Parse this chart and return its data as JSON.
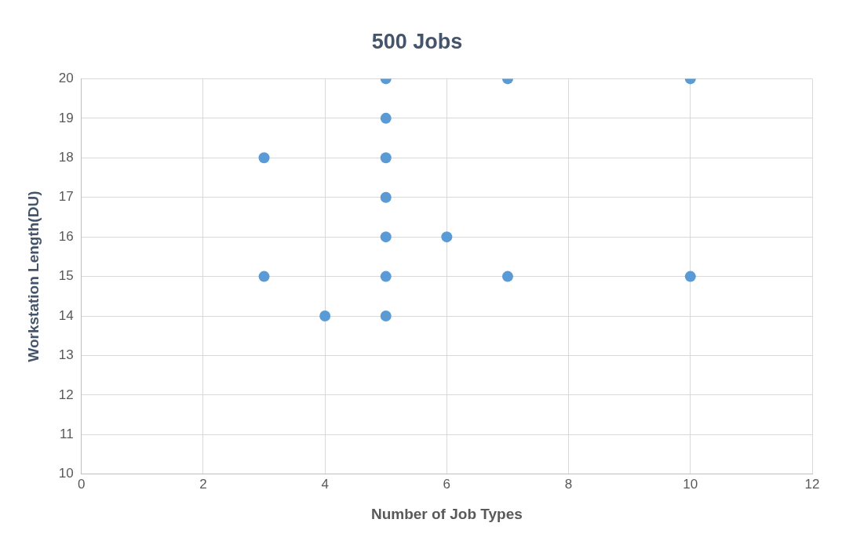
{
  "chart_data": {
    "type": "scatter",
    "title": "500 Jobs",
    "xlabel": "Number of Job Types",
    "ylabel": "Workstation Length(DU)",
    "x": [
      5,
      7,
      10,
      5,
      3,
      5,
      5,
      5,
      6,
      3,
      5,
      7,
      10,
      4,
      5
    ],
    "values": [
      20,
      20,
      20,
      19,
      18,
      18,
      17,
      16,
      16,
      15,
      15,
      15,
      15,
      14,
      14
    ],
    "color": "#5b9bd5",
    "xlim": [
      0,
      12
    ],
    "xticks": [
      0,
      2,
      4,
      6,
      8,
      10,
      12
    ],
    "ylim": [
      10,
      20
    ],
    "yticks": [
      10,
      11,
      12,
      13,
      14,
      15,
      16,
      17,
      18,
      19,
      20
    ],
    "grid": true,
    "marker": "circle"
  }
}
